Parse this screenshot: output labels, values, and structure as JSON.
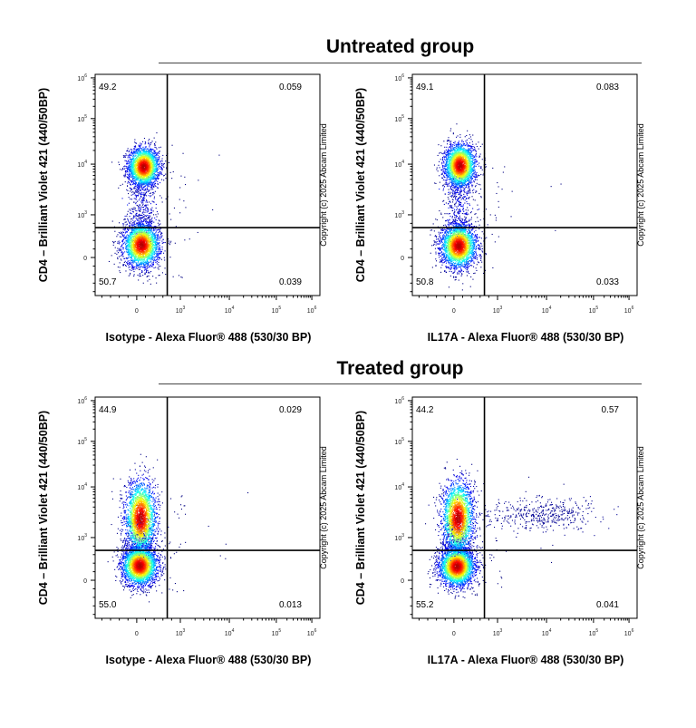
{
  "groups": [
    {
      "title": "Untreated group"
    },
    {
      "title": "Treated group"
    }
  ],
  "copyright": "Copyright (c) 2025 Abcam Limited",
  "chart_data": [
    {
      "type": "scatter",
      "group": "Untreated group",
      "xlabel": "Isotype - Alexa Fluor® 488 (530/30 BP)",
      "ylabel": "CD4 – Brilliant Violet 421 (440/50BP)",
      "x_ticks": [
        {
          "value": 0,
          "label": "0"
        },
        {
          "value": 1000,
          "label": "10",
          "exp": "3"
        },
        {
          "value": 10000,
          "label": "10",
          "exp": "4"
        },
        {
          "value": 100000,
          "label": "10",
          "exp": "5"
        },
        {
          "value": 1000000,
          "label": "10",
          "exp": "6"
        }
      ],
      "y_ticks": [
        {
          "value": 0,
          "label": "0"
        },
        {
          "value": 1000,
          "label": "10",
          "exp": "3"
        },
        {
          "value": 10000,
          "label": "10",
          "exp": "4"
        },
        {
          "value": 100000,
          "label": "10",
          "exp": "5"
        },
        {
          "value": 1000000,
          "label": "10",
          "exp": "6"
        }
      ],
      "scale": "biexponential",
      "quadrant_gate": {
        "x": 700,
        "y": 700
      },
      "quadrants": {
        "upper_left": "49.2",
        "upper_right": "0.059",
        "lower_left": "50.7",
        "lower_right": "0.039"
      },
      "populations": [
        {
          "x": 150,
          "y": 9000,
          "share": 0.49
        },
        {
          "x": 100,
          "y": 300,
          "share": 0.51
        }
      ]
    },
    {
      "type": "scatter",
      "group": "Untreated group",
      "xlabel": "IL17A - Alexa Fluor® 488 (530/30 BP)",
      "ylabel": "CD4 – Brilliant Violet 421 (440/50BP)",
      "x_ticks": [
        {
          "value": 0,
          "label": "0"
        },
        {
          "value": 1000,
          "label": "10",
          "exp": "3"
        },
        {
          "value": 10000,
          "label": "10",
          "exp": "4"
        },
        {
          "value": 100000,
          "label": "10",
          "exp": "5"
        },
        {
          "value": 1000000,
          "label": "10",
          "exp": "6"
        }
      ],
      "y_ticks": [
        {
          "value": 0,
          "label": "0"
        },
        {
          "value": 1000,
          "label": "10",
          "exp": "3"
        },
        {
          "value": 10000,
          "label": "10",
          "exp": "4"
        },
        {
          "value": 100000,
          "label": "10",
          "exp": "5"
        },
        {
          "value": 1000000,
          "label": "10",
          "exp": "6"
        }
      ],
      "scale": "biexponential",
      "quadrant_gate": {
        "x": 700,
        "y": 700
      },
      "quadrants": {
        "upper_left": "49.1",
        "upper_right": "0.083",
        "lower_left": "50.8",
        "lower_right": "0.033"
      },
      "populations": [
        {
          "x": 130,
          "y": 9500,
          "share": 0.49
        },
        {
          "x": 100,
          "y": 280,
          "share": 0.51
        }
      ]
    },
    {
      "type": "scatter",
      "group": "Treated group",
      "xlabel": "Isotype - Alexa Fluor® 488 (530/30 BP)",
      "ylabel": "CD4 – Brilliant Violet 421 (440/50BP)",
      "x_ticks": [
        {
          "value": 0,
          "label": "0"
        },
        {
          "value": 1000,
          "label": "10",
          "exp": "3"
        },
        {
          "value": 10000,
          "label": "10",
          "exp": "4"
        },
        {
          "value": 100000,
          "label": "10",
          "exp": "5"
        },
        {
          "value": 1000000,
          "label": "10",
          "exp": "6"
        }
      ],
      "y_ticks": [
        {
          "value": 0,
          "label": "0"
        },
        {
          "value": 1000,
          "label": "10",
          "exp": "3"
        },
        {
          "value": 10000,
          "label": "10",
          "exp": "4"
        },
        {
          "value": 100000,
          "label": "10",
          "exp": "5"
        },
        {
          "value": 1000000,
          "label": "10",
          "exp": "6"
        }
      ],
      "scale": "biexponential",
      "quadrant_gate": {
        "x": 700,
        "y": 700
      },
      "quadrants": {
        "upper_left": "44.9",
        "upper_right": "0.029",
        "lower_left": "55.0",
        "lower_right": "0.013"
      },
      "populations": [
        {
          "x": 80,
          "y": 2500,
          "share": 0.45
        },
        {
          "x": 60,
          "y": 350,
          "share": 0.55
        }
      ]
    },
    {
      "type": "scatter",
      "group": "Treated group",
      "xlabel": "IL17A - Alexa Fluor® 488 (530/30 BP)",
      "ylabel": "CD4 – Brilliant Violet 421 (440/50BP)",
      "x_ticks": [
        {
          "value": 0,
          "label": "0"
        },
        {
          "value": 1000,
          "label": "10",
          "exp": "3"
        },
        {
          "value": 10000,
          "label": "10",
          "exp": "4"
        },
        {
          "value": 100000,
          "label": "10",
          "exp": "5"
        },
        {
          "value": 1000000,
          "label": "10",
          "exp": "6"
        }
      ],
      "y_ticks": [
        {
          "value": 0,
          "label": "0"
        },
        {
          "value": 1000,
          "label": "10",
          "exp": "3"
        },
        {
          "value": 10000,
          "label": "10",
          "exp": "4"
        },
        {
          "value": 100000,
          "label": "10",
          "exp": "5"
        },
        {
          "value": 1000000,
          "label": "10",
          "exp": "6"
        }
      ],
      "scale": "biexponential",
      "quadrant_gate": {
        "x": 700,
        "y": 700
      },
      "quadrants": {
        "upper_left": "44.2",
        "upper_right": "0.57",
        "lower_left": "55.2",
        "lower_right": "0.041"
      },
      "populations": [
        {
          "x": 80,
          "y": 2500,
          "share": 0.44
        },
        {
          "x": 60,
          "y": 330,
          "share": 0.55
        },
        {
          "x": 8000,
          "y": 3000,
          "share": 0.0057
        }
      ]
    }
  ]
}
